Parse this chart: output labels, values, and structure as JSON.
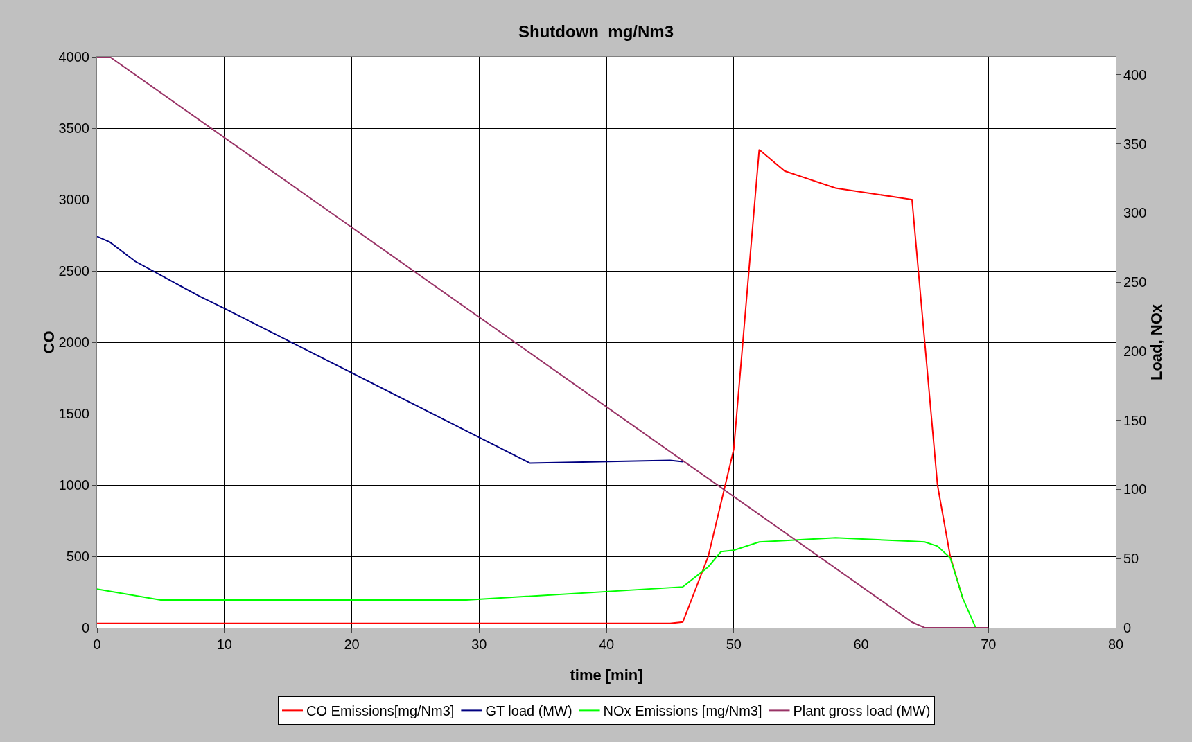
{
  "chart_data": {
    "type": "line",
    "title": "Shutdown_mg/Nm3",
    "xlabel": "time [min]",
    "ylabel": "CO",
    "y2label": "Load, NOx",
    "xlim": [
      0,
      80
    ],
    "xticks": [
      0,
      10,
      20,
      30,
      40,
      50,
      60,
      70,
      80
    ],
    "ylim": [
      0,
      4000
    ],
    "yticks": [
      0,
      500,
      1000,
      1500,
      2000,
      2500,
      3000,
      3500,
      4000
    ],
    "y2lim": [
      0,
      413
    ],
    "y2ticks": [
      0,
      50,
      100,
      150,
      200,
      250,
      300,
      350,
      400
    ],
    "grid": true,
    "legend": "bottom",
    "marker": "none",
    "line_style": "solid",
    "series": [
      {
        "name": "CO Emissions[mg/Nm3]",
        "color": "#ff0000",
        "x": [
          0,
          45,
          46,
          48,
          50,
          52,
          54,
          58,
          64,
          66,
          67,
          68
        ],
        "values": [
          30,
          30,
          40,
          500,
          1250,
          3350,
          3200,
          3080,
          3000,
          1000,
          500,
          200
        ]
      },
      {
        "name": "GT load (MW)",
        "color": "#000080",
        "axis": "y2",
        "x": [
          0,
          1,
          3,
          5,
          8,
          10,
          34,
          45,
          46
        ],
        "values": [
          283,
          279,
          265,
          255,
          240,
          231,
          119,
          121,
          120
        ]
      },
      {
        "name": "NOx Emissions [mg/Nm3]",
        "color": "#00ff00",
        "axis": "y2",
        "x": [
          0,
          5,
          29,
          46,
          48,
          49,
          50,
          52,
          58,
          64,
          65,
          66,
          67,
          68,
          69
        ],
        "values": [
          28,
          20,
          20,
          29.5,
          44,
          55,
          56,
          62,
          65,
          62.5,
          62,
          59,
          50.5,
          21,
          0
        ]
      },
      {
        "name": "Plant gross load (MW)",
        "color": "#993366",
        "axis": "y2",
        "x": [
          0,
          1,
          64,
          65,
          70
        ],
        "values": [
          413,
          413,
          4,
          0,
          0
        ]
      }
    ]
  }
}
